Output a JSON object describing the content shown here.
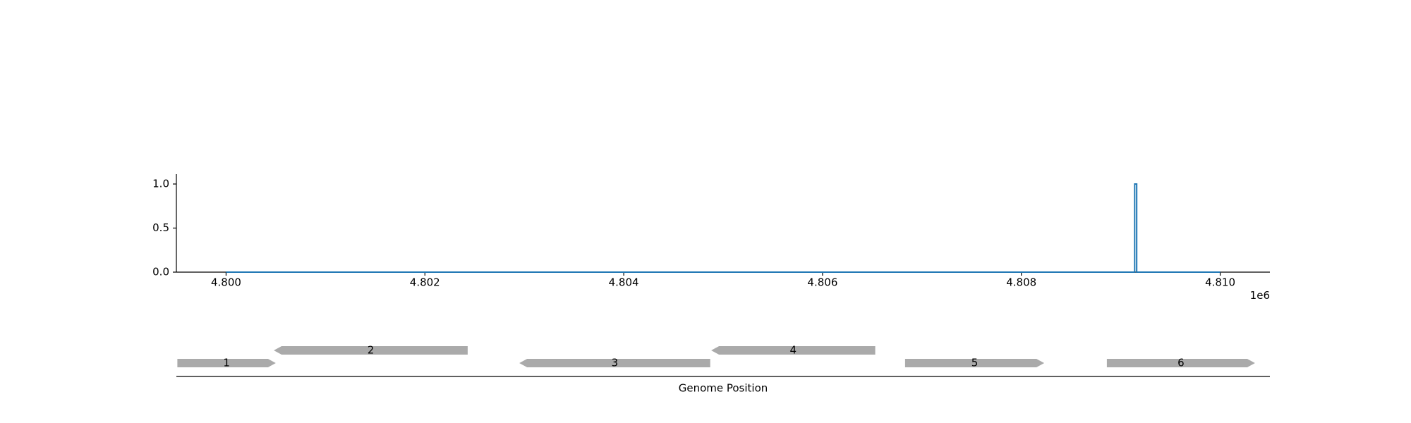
{
  "chart_data": [
    {
      "type": "line",
      "x_ticks": [
        4.8,
        4.802,
        4.804,
        4.806,
        4.808,
        4.81
      ],
      "x_tick_labels": [
        "4.800",
        "4.802",
        "4.804",
        "4.806",
        "4.808",
        "4.810"
      ],
      "x_offset_label": "1e6",
      "xlim": [
        4.7995,
        4.8105
      ],
      "ylim": [
        0.0,
        1.12
      ],
      "y_ticks": [
        0.0,
        0.5,
        1.0
      ],
      "y_tick_labels": [
        "0.0",
        "0.5",
        "1.0"
      ],
      "grid": false,
      "series": [
        {
          "color": "#1f77b4",
          "x": [
            4.8,
            4.80914,
            4.80914,
            4.80916,
            4.80916,
            4.81
          ],
          "y": [
            0.0,
            0.0,
            1.0,
            1.0,
            0.0,
            0.0
          ]
        }
      ]
    },
    {
      "type": "gene-track",
      "xlabel": "Genome Position",
      "xlim": [
        4.7995,
        4.8105
      ],
      "feature_color": "#aaaaaa",
      "features": [
        {
          "label": "1",
          "start": 4.79951,
          "end": 4.8005,
          "strand": "+",
          "lane": 0
        },
        {
          "label": "2",
          "start": 4.80048,
          "end": 4.80243,
          "strand": "-",
          "lane": 1
        },
        {
          "label": "3",
          "start": 4.80295,
          "end": 4.80487,
          "strand": "-",
          "lane": 0
        },
        {
          "label": "4",
          "start": 4.80488,
          "end": 4.80653,
          "strand": "-",
          "lane": 1
        },
        {
          "label": "5",
          "start": 4.80683,
          "end": 4.80823,
          "strand": "+",
          "lane": 0
        },
        {
          "label": "6",
          "start": 4.80886,
          "end": 4.81035,
          "strand": "+",
          "lane": 0
        }
      ]
    }
  ]
}
